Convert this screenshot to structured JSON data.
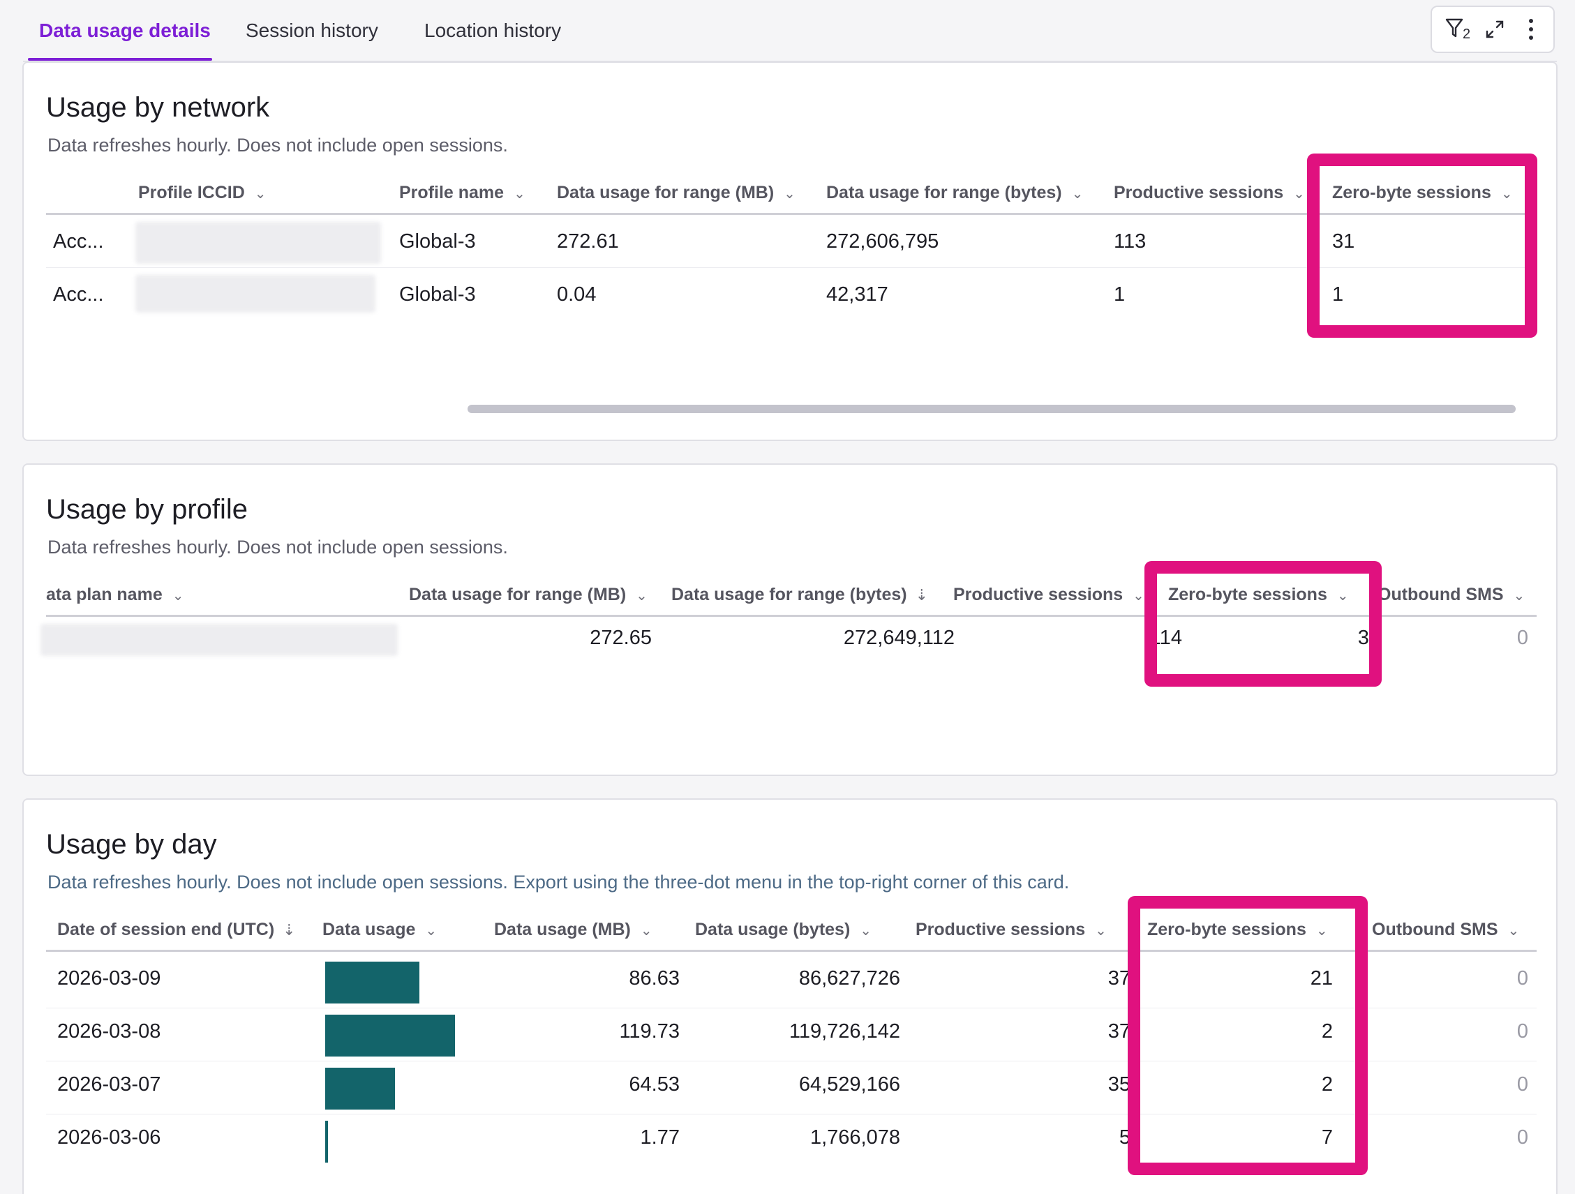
{
  "tabs": [
    {
      "label": "Data usage details",
      "active": true
    },
    {
      "label": "Session history",
      "active": false
    },
    {
      "label": "Location history",
      "active": false
    }
  ],
  "toolbar": {
    "filter_icon": "filter-icon",
    "filter_count": "2",
    "expand_icon": "expand-icon",
    "menu_icon": "more-vertical-icon"
  },
  "network": {
    "title": "Usage by network",
    "subtitle": "Data refreshes hourly. Does not include open sessions.",
    "columns": [
      "Profile ICCID",
      "Profile name",
      "Data usage for range (MB)",
      "Data usage for range (bytes)",
      "Productive sessions",
      "Zero-byte sessions"
    ],
    "rows": [
      {
        "account": "Acc...",
        "profile_name": "Global-3",
        "mb": "272.61",
        "bytes": "272,606,795",
        "productive": "113",
        "zero": "31"
      },
      {
        "account": "Acc...",
        "profile_name": "Global-3",
        "mb": "0.04",
        "bytes": "42,317",
        "productive": "1",
        "zero": "1"
      }
    ]
  },
  "profile": {
    "title": "Usage by profile",
    "subtitle": "Data refreshes hourly. Does not include open sessions.",
    "columns": [
      "ata plan name",
      "Data usage for range (MB)",
      "Data usage for range (bytes)",
      "Productive sessions",
      "Zero-byte sessions",
      "Outbound SMS"
    ],
    "rows": [
      {
        "mb": "272.65",
        "bytes": "272,649,112",
        "productive": "114",
        "zero": "32",
        "sms": "0"
      }
    ]
  },
  "day": {
    "title": "Usage by day",
    "subtitle": "Data refreshes hourly. Does not include open sessions. Export using the three-dot menu in the top-right corner of this card.",
    "columns": [
      "Date of session end (UTC)",
      "Data usage",
      "Data usage (MB)",
      "Data usage (bytes)",
      "Productive sessions",
      "Zero-byte sessions",
      "Outbound SMS"
    ],
    "bar_max_mb": 119.73,
    "rows": [
      {
        "date": "2026-03-09",
        "mb": "86.63",
        "mb_value": 86.63,
        "bytes": "86,627,726",
        "productive": "37",
        "zero": "21",
        "sms": "0"
      },
      {
        "date": "2026-03-08",
        "mb": "119.73",
        "mb_value": 119.73,
        "bytes": "119,726,142",
        "productive": "37",
        "zero": "2",
        "sms": "0"
      },
      {
        "date": "2026-03-07",
        "mb": "64.53",
        "mb_value": 64.53,
        "bytes": "64,529,166",
        "productive": "35",
        "zero": "2",
        "sms": "0"
      },
      {
        "date": "2026-03-06",
        "mb": "1.77",
        "mb_value": 1.77,
        "bytes": "1,766,078",
        "productive": "5",
        "zero": "7",
        "sms": "0"
      }
    ]
  },
  "colors": {
    "accent": "#7d1fd6",
    "highlight": "#e0117f",
    "bar": "#13646a"
  }
}
